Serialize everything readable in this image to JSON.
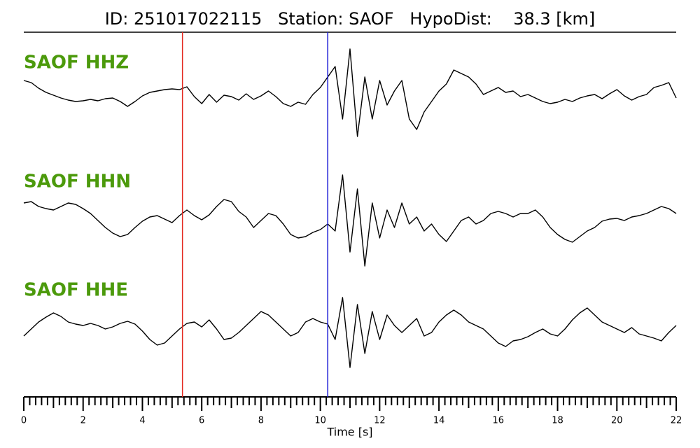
{
  "chart_data": {
    "type": "line",
    "title": "ID: 251017022115   Station: SAOF   HypoDist:    38.3 [km]",
    "xlabel": "Time [s]",
    "xlim": [
      0,
      22
    ],
    "xticks": [
      0,
      2,
      4,
      6,
      8,
      10,
      12,
      14,
      16,
      18,
      20,
      22
    ],
    "minor_xticks": [
      0.2,
      0.4,
      0.6,
      0.8,
      1,
      1.2,
      1.4,
      1.6,
      1.8,
      2.2,
      2.4,
      2.6,
      2.8,
      3,
      3.2,
      3.4,
      3.6,
      3.8,
      4.2,
      4.4,
      4.6,
      4.8,
      5,
      5.2,
      5.4,
      5.6,
      5.8,
      6.2,
      6.4,
      6.6,
      6.8,
      7,
      7.2,
      7.4,
      7.6,
      7.8,
      8.2,
      8.4,
      8.6,
      8.8,
      9,
      9.2,
      9.4,
      9.6,
      9.8,
      10.2,
      10.4,
      10.6,
      10.8,
      11,
      11.2,
      11.4,
      11.6,
      11.8,
      12.2,
      12.4,
      12.6,
      12.8,
      13,
      13.2,
      13.4,
      13.6,
      13.8,
      14.2,
      14.4,
      14.6,
      14.8,
      15,
      15.2,
      15.4,
      15.6,
      15.8,
      16.2,
      16.4,
      16.6,
      16.8,
      17,
      17.2,
      17.4,
      17.6,
      17.8,
      18.2,
      18.4,
      18.6,
      18.8,
      19,
      19.2,
      19.4,
      19.6,
      19.8,
      20.2,
      20.4,
      20.6,
      20.8,
      21,
      21.2,
      21.4,
      21.6,
      21.8
    ],
    "ylim": [
      -10,
      10
    ],
    "markers": [
      {
        "x": 5.35,
        "color": "#e3261c"
      },
      {
        "x": 10.25,
        "color": "#1a1ad6"
      }
    ],
    "x": [
      0,
      0.25,
      0.5,
      0.75,
      1,
      1.25,
      1.5,
      1.75,
      2,
      2.25,
      2.5,
      2.75,
      3,
      3.25,
      3.5,
      3.75,
      4,
      4.25,
      4.5,
      4.75,
      5,
      5.25,
      5.5,
      5.75,
      6,
      6.25,
      6.5,
      6.75,
      7,
      7.25,
      7.5,
      7.75,
      8,
      8.25,
      8.5,
      8.75,
      9,
      9.25,
      9.5,
      9.75,
      10,
      10.25,
      10.5,
      10.75,
      11,
      11.25,
      11.5,
      11.75,
      12,
      12.25,
      12.5,
      12.75,
      13,
      13.25,
      13.5,
      13.75,
      14,
      14.25,
      14.5,
      14.75,
      15,
      15.25,
      15.5,
      15.75,
      16,
      16.25,
      16.5,
      16.75,
      17,
      17.25,
      17.5,
      17.75,
      18,
      18.25,
      18.5,
      18.75,
      19,
      19.25,
      19.5,
      19.75,
      20,
      20.25,
      20.5,
      20.75,
      21,
      21.25,
      21.5,
      21.75,
      22
    ],
    "series": [
      {
        "name": "SAOF HHZ",
        "color": "#000000",
        "values": [
          2.5,
          2.2,
          1.4,
          0.8,
          0.4,
          0,
          -0.3,
          -0.5,
          -0.4,
          -0.2,
          -0.4,
          -0.1,
          0,
          -0.5,
          -1.2,
          -0.5,
          0.3,
          0.8,
          1,
          1.2,
          1.3,
          1.2,
          1.6,
          0.2,
          -0.8,
          0.5,
          -0.6,
          0.4,
          0.2,
          -0.3,
          0.6,
          -0.2,
          0.3,
          1,
          0.2,
          -0.8,
          -1.2,
          -0.6,
          -0.9,
          0.5,
          1.5,
          3,
          4.5,
          -3,
          7,
          -5.5,
          3,
          -3,
          2.5,
          -1,
          1,
          2.5,
          -3,
          -4.5,
          -2,
          -0.5,
          1,
          2,
          4,
          3.5,
          3,
          2,
          0.5,
          1,
          1.5,
          0.8,
          1,
          0.2,
          0.5,
          0,
          -0.5,
          -0.8,
          -0.6,
          -0.2,
          -0.5,
          0,
          0.3,
          0.5,
          -0.1,
          0.6,
          1.2,
          0.3,
          -0.3,
          0.2,
          0.5,
          1.5,
          1.8,
          2.2,
          0
        ]
      },
      {
        "name": "SAOF HHN",
        "color": "#000000",
        "values": [
          2,
          2.2,
          1.5,
          1.2,
          1,
          1.5,
          2,
          1.8,
          1.2,
          0.5,
          -0.5,
          -1.5,
          -2.3,
          -2.8,
          -2.5,
          -1.5,
          -0.6,
          0,
          0.2,
          -0.3,
          -0.8,
          0.2,
          1,
          0.2,
          -0.4,
          0.3,
          1.5,
          2.5,
          2.2,
          0.8,
          0,
          -1.5,
          -0.5,
          0.5,
          0.2,
          -1,
          -2.5,
          -3,
          -2.8,
          -2.2,
          -1.8,
          -1,
          -2,
          6,
          -5,
          4,
          -7,
          2,
          -3,
          1,
          -1.5,
          2,
          -1,
          0,
          -2,
          -1,
          -2.5,
          -3.5,
          -2,
          -0.5,
          0,
          -1,
          -0.5,
          0.5,
          0.8,
          0.5,
          0,
          0.5,
          0.5,
          1,
          0,
          -1.5,
          -2.5,
          -3.2,
          -3.6,
          -2.8,
          -2,
          -1.5,
          -0.6,
          -0.3,
          -0.2,
          -0.5,
          0,
          0.2,
          0.5,
          1,
          1.5,
          1.2,
          0.5
        ]
      },
      {
        "name": "SAOF HHE",
        "color": "#000000",
        "values": [
          -1.5,
          -0.5,
          0.5,
          1.2,
          1.8,
          1.3,
          0.5,
          0.2,
          0,
          0.3,
          0,
          -0.5,
          -0.2,
          0.3,
          0.6,
          0.2,
          -0.8,
          -2,
          -2.8,
          -2.5,
          -1.5,
          -0.5,
          0.3,
          0.5,
          -0.2,
          0.8,
          -0.5,
          -2,
          -1.8,
          -1,
          0,
          1,
          2,
          1.5,
          0.5,
          -0.5,
          -1.5,
          -1,
          0.5,
          1,
          0.5,
          0.2,
          -2,
          4,
          -6,
          3,
          -4,
          2,
          -2,
          1.5,
          0,
          -1,
          0,
          1,
          -1.5,
          -1,
          0.5,
          1.5,
          2.2,
          1.5,
          0.5,
          0,
          -0.5,
          -1.5,
          -2.5,
          -3,
          -2.2,
          -2,
          -1.6,
          -1,
          -0.5,
          -1.2,
          -1.5,
          -0.5,
          0.8,
          1.8,
          2.5,
          1.5,
          0.5,
          0,
          -0.5,
          -1,
          -0.3,
          -1.2,
          -1.5,
          -1.8,
          -2.2,
          -1,
          0
        ]
      }
    ]
  }
}
